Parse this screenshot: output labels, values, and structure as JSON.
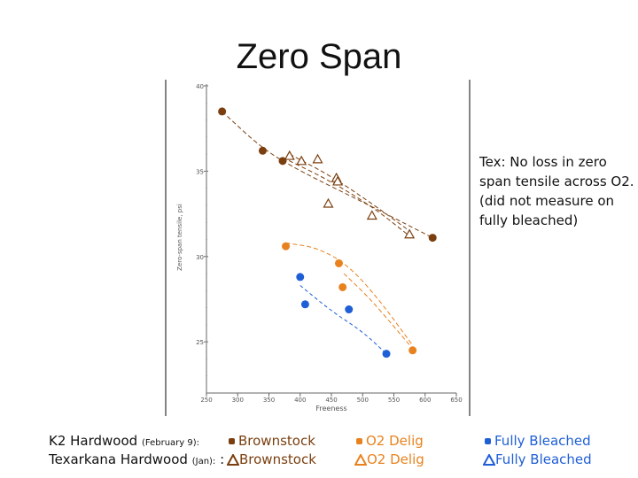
{
  "title": "Zero Span",
  "note": "Tex: No loss in zero span tensile across O2. (did not measure on fully bleached)",
  "colors": {
    "brown": "#7b3f0f",
    "orange": "#e8821e",
    "blue": "#1f5fd6",
    "axis": "#666666"
  },
  "legend": {
    "row1_label": "K2 Hardwood",
    "row1_small": "(February 9):",
    "row2_label": "Texarkana Hardwood",
    "row2_small": "(Jan):",
    "row2_sep": ":",
    "brownstock": "Brownstock",
    "o2": "O2 Delig",
    "fully": "Fully Bleached"
  },
  "chart_data": {
    "type": "scatter",
    "xlabel": "Freeness",
    "ylabel": "Zero-span tensile, psi",
    "xlim": [
      250,
      650
    ],
    "ylim": [
      22,
      40
    ],
    "x_ticks": [
      "250",
      "300",
      "350",
      "400",
      "450",
      "500",
      "550",
      "600",
      "650"
    ],
    "y_ticks": [
      "25",
      "30",
      "35",
      "40"
    ],
    "series": [
      {
        "name": "Brownstock",
        "mill": "K2 Hardwood",
        "marker": "circle",
        "color": "brown",
        "points": [
          [
            275,
            38.5
          ],
          [
            340,
            36.2
          ],
          [
            372,
            35.6
          ],
          [
            612,
            31.1
          ]
        ]
      },
      {
        "name": "O2 Delig",
        "mill": "K2 Hardwood",
        "marker": "circle",
        "color": "orange",
        "points": [
          [
            377,
            30.6
          ],
          [
            462,
            29.6
          ],
          [
            468,
            28.2
          ],
          [
            580,
            24.5
          ]
        ]
      },
      {
        "name": "Fully Bleached",
        "mill": "K2 Hardwood",
        "marker": "circle",
        "color": "blue",
        "points": [
          [
            400,
            28.8
          ],
          [
            408,
            27.2
          ],
          [
            478,
            26.9
          ],
          [
            538,
            24.3
          ]
        ]
      },
      {
        "name": "Brownstock",
        "mill": "Texarkana Hardwood",
        "marker": "triangle",
        "color": "brown",
        "points": [
          [
            383,
            35.9
          ],
          [
            402,
            35.6
          ],
          [
            428,
            35.7
          ],
          [
            458,
            34.6
          ],
          [
            460,
            34.4
          ],
          [
            445,
            33.1
          ],
          [
            515,
            32.4
          ],
          [
            575,
            31.3
          ]
        ]
      }
    ],
    "trendlines": [
      {
        "color": "brown",
        "dash": "5,3",
        "points": [
          [
            275,
            38.5
          ],
          [
            340,
            36.3
          ],
          [
            400,
            35.0
          ],
          [
            500,
            33.2
          ],
          [
            612,
            31.1
          ]
        ]
      },
      {
        "color": "brown",
        "dash": "5,3",
        "points": [
          [
            383,
            36.0
          ],
          [
            450,
            34.7
          ],
          [
            515,
            33.1
          ],
          [
            575,
            31.5
          ]
        ]
      },
      {
        "color": "brown",
        "dash": "5,3",
        "points": [
          [
            372,
            35.8
          ],
          [
            450,
            34.4
          ],
          [
            520,
            32.8
          ],
          [
            575,
            31.2
          ]
        ]
      },
      {
        "color": "orange",
        "dash": "5,3",
        "points": [
          [
            377,
            30.8
          ],
          [
            430,
            30.5
          ],
          [
            480,
            29.4
          ],
          [
            530,
            27.3
          ],
          [
            580,
            24.8
          ]
        ]
      },
      {
        "color": "orange",
        "dash": "5,3",
        "points": [
          [
            470,
            29.0
          ],
          [
            510,
            27.6
          ],
          [
            550,
            25.9
          ],
          [
            580,
            24.6
          ]
        ]
      },
      {
        "color": "blue",
        "dash": "4,3",
        "points": [
          [
            400,
            28.3
          ],
          [
            450,
            26.8
          ],
          [
            500,
            25.6
          ],
          [
            538,
            24.3
          ]
        ]
      }
    ]
  }
}
